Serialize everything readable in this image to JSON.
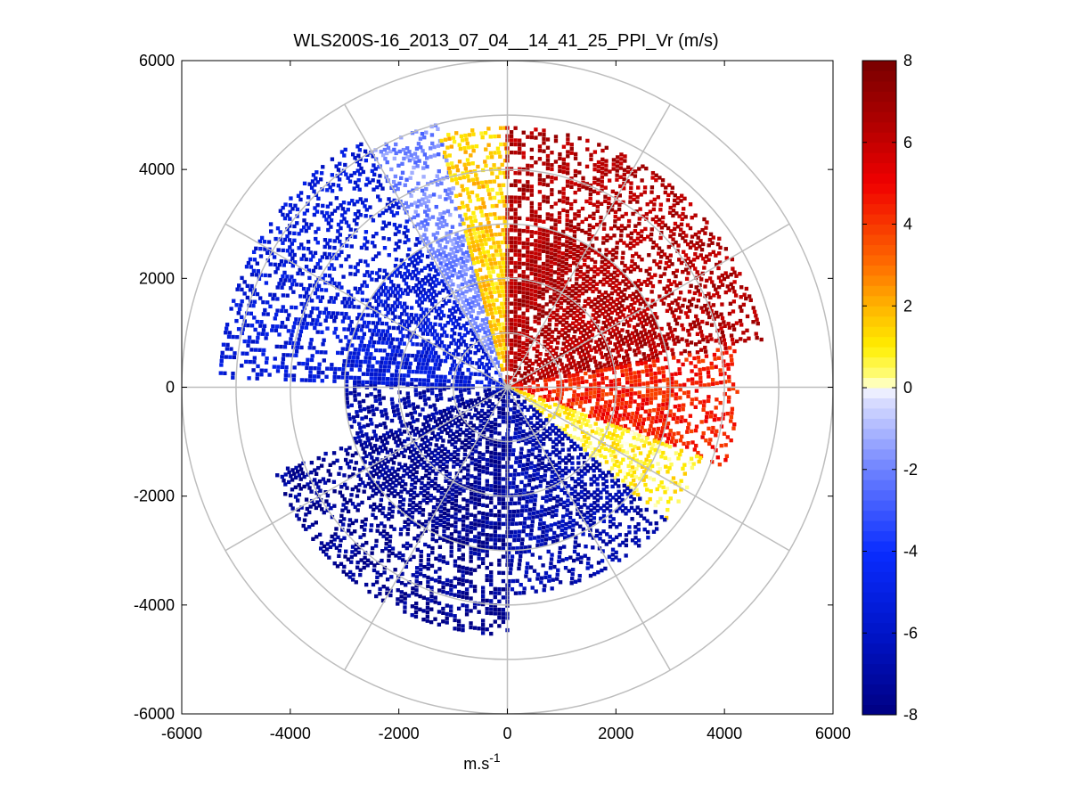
{
  "chart_data": {
    "type": "heatmap",
    "subtype": "polar-ppi",
    "title": "WLS200S-16_2013_07_04__14_41_25_PPI_Vr (m/s)",
    "xlabel_base": "m.s",
    "xlabel_sup": "-1",
    "ylabel": "",
    "xlim": [
      -6000,
      6000
    ],
    "ylim": [
      -6000,
      6000
    ],
    "x_ticks": [
      "-6000",
      "-4000",
      "-2000",
      "0",
      "2000",
      "4000",
      "6000"
    ],
    "y_ticks": [
      "6000",
      "4000",
      "2000",
      "0",
      "-2000",
      "-4000",
      "-6000"
    ],
    "x_tick_values": [
      -6000,
      -4000,
      -2000,
      0,
      2000,
      4000,
      6000
    ],
    "y_tick_values": [
      6000,
      4000,
      2000,
      0,
      -2000,
      -4000,
      -6000
    ],
    "range_rings_m": [
      1000,
      2000,
      3000,
      4000,
      5000,
      6000
    ],
    "spoke_angles_deg": [
      0,
      30,
      60,
      90,
      120,
      150,
      180,
      210,
      240,
      270,
      300,
      330
    ],
    "colorbar": {
      "range": [
        -8,
        8
      ],
      "tick_values": [
        8,
        6,
        4,
        2,
        0,
        -2,
        -4,
        -6,
        -8
      ],
      "tick_labels": [
        "8",
        "6",
        "4",
        "2",
        "0",
        "-2",
        "-4",
        "-6",
        "-8"
      ]
    },
    "sectors": [
      {
        "from_deg": 180,
        "to_deg": 250,
        "r_min": 0,
        "r_max": 4600,
        "vr": -7.5,
        "density": 0.78
      },
      {
        "from_deg": 250,
        "to_deg": 272,
        "r_min": 0,
        "r_max": 3000,
        "vr": -7.0,
        "density": 0.55
      },
      {
        "from_deg": 272,
        "to_deg": 330,
        "r_min": 0,
        "r_max": 5300,
        "vr": -5.5,
        "density": 0.72
      },
      {
        "from_deg": 330,
        "to_deg": 345,
        "r_min": 0,
        "r_max": 5000,
        "vr": -2.0,
        "density": 0.8
      },
      {
        "from_deg": 345,
        "to_deg": 360,
        "r_min": 0,
        "r_max": 4800,
        "vr": 1.5,
        "density": 0.85
      },
      {
        "from_deg": 0,
        "to_deg": 80,
        "r_min": 0,
        "r_max": 4800,
        "vr": 6.5,
        "density": 0.82
      },
      {
        "from_deg": 80,
        "to_deg": 110,
        "r_min": 0,
        "r_max": 4300,
        "vr": 4.5,
        "density": 0.75
      },
      {
        "from_deg": 110,
        "to_deg": 130,
        "r_min": 0,
        "r_max": 3800,
        "vr": 0.8,
        "density": 0.7
      },
      {
        "from_deg": 130,
        "to_deg": 180,
        "r_min": 0,
        "r_max": 3800,
        "vr": -6.8,
        "density": 0.72
      }
    ]
  }
}
